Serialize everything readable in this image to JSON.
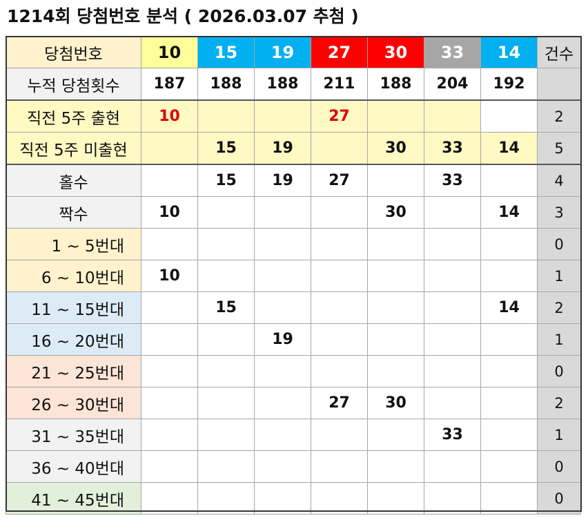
{
  "title": "1214회 당첨번호 분석 ( 2026.03.07 추첨 )",
  "header": {
    "label": "당첨번호",
    "numbers": [
      "10",
      "15",
      "19",
      "27",
      "30",
      "33",
      "14"
    ],
    "count_label": "건수"
  },
  "colors": {
    "yellow": "#ffff99",
    "blue": "#00b0f0",
    "red": "#ff0000",
    "gray": "#a6a6a6",
    "accent_red_text": "#e00000"
  },
  "rows": [
    {
      "label": "누적 당첨횟수",
      "cells": [
        "187",
        "188",
        "188",
        "211",
        "188",
        "204",
        "192"
      ],
      "count": ""
    },
    {
      "label": "직전 5주 출현",
      "cells": [
        "10",
        "",
        "",
        "27",
        "",
        "",
        ""
      ],
      "count": "2"
    },
    {
      "label": "직전 5주 미출현",
      "cells": [
        "",
        "15",
        "19",
        "",
        "30",
        "33",
        "14"
      ],
      "count": "5"
    },
    {
      "label": "홀수",
      "cells": [
        "",
        "15",
        "19",
        "27",
        "",
        "33",
        ""
      ],
      "count": "4"
    },
    {
      "label": "짝수",
      "cells": [
        "10",
        "",
        "",
        "",
        "30",
        "",
        "14"
      ],
      "count": "3"
    },
    {
      "label": "1 ~ 5번대",
      "cells": [
        "",
        "",
        "",
        "",
        "",
        "",
        ""
      ],
      "count": "0"
    },
    {
      "label": "6 ~ 10번대",
      "cells": [
        "10",
        "",
        "",
        "",
        "",
        "",
        ""
      ],
      "count": "1"
    },
    {
      "label": "11 ~ 15번대",
      "cells": [
        "",
        "15",
        "",
        "",
        "",
        "",
        "14"
      ],
      "count": "2"
    },
    {
      "label": "16 ~ 20번대",
      "cells": [
        "",
        "",
        "19",
        "",
        "",
        "",
        ""
      ],
      "count": "1"
    },
    {
      "label": "21 ~ 25번대",
      "cells": [
        "",
        "",
        "",
        "",
        "",
        "",
        ""
      ],
      "count": "0"
    },
    {
      "label": "26 ~ 30번대",
      "cells": [
        "",
        "",
        "",
        "27",
        "30",
        "",
        ""
      ],
      "count": "2"
    },
    {
      "label": "31 ~ 35번대",
      "cells": [
        "",
        "",
        "",
        "",
        "",
        "33",
        ""
      ],
      "count": "1"
    },
    {
      "label": "36 ~ 40번대",
      "cells": [
        "",
        "",
        "",
        "",
        "",
        "",
        ""
      ],
      "count": "0"
    },
    {
      "label": "41 ~ 45번대",
      "cells": [
        "",
        "",
        "",
        "",
        "",
        "",
        ""
      ],
      "count": "0"
    }
  ]
}
